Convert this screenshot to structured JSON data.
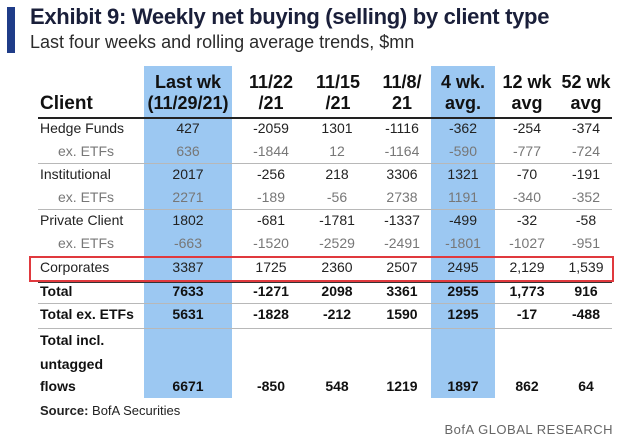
{
  "title": "Exhibit 9: Weekly net buying (selling) by client type",
  "subtitle": "Last four weeks and rolling average trends, $mn",
  "header": {
    "client": "Client",
    "columns": [
      {
        "line1": "Last wk",
        "line2": "(11/29/21)"
      },
      {
        "line1": "11/22",
        "line2": "/21"
      },
      {
        "line1": "11/15",
        "line2": "/21"
      },
      {
        "line1": "11/8/",
        "line2": "21"
      },
      {
        "line1": "4 wk.",
        "line2": "avg."
      },
      {
        "line1": "12 wk",
        "line2": "avg"
      },
      {
        "line1": "52 wk",
        "line2": "avg"
      }
    ]
  },
  "rows": [
    {
      "label": "Hedge Funds",
      "values": [
        "427",
        "-2059",
        "1301",
        "-1116",
        "-362",
        "-254",
        "-374"
      ]
    },
    {
      "label": "ex. ETFs",
      "values": [
        "636",
        "-1844",
        "12",
        "-1164",
        "-590",
        "-777",
        "-724"
      ]
    },
    {
      "label": "Institutional",
      "values": [
        "2017",
        "-256",
        "218",
        "3306",
        "1321",
        "-70",
        "-191"
      ]
    },
    {
      "label": "ex. ETFs",
      "values": [
        "2271",
        "-189",
        "-56",
        "2738",
        "1191",
        "-340",
        "-352"
      ]
    },
    {
      "label": "Private Client",
      "values": [
        "1802",
        "-681",
        "-1781",
        "-1337",
        "-499",
        "-32",
        "-58"
      ]
    },
    {
      "label": "ex. ETFs",
      "values": [
        "-663",
        "-1520",
        "-2529",
        "-2491",
        "-1801",
        "-1027",
        "-951"
      ]
    },
    {
      "label": "Corporates",
      "values": [
        "3387",
        "1725",
        "2360",
        "2507",
        "2495",
        "2,129",
        "1,539"
      ]
    },
    {
      "label": "Total",
      "values": [
        "7633",
        "-1271",
        "2098",
        "3361",
        "2955",
        "1,773",
        "916"
      ]
    },
    {
      "label": "Total ex. ETFs",
      "values": [
        "5631",
        "-1828",
        "-212",
        "1590",
        "1295",
        "-17",
        "-488"
      ]
    },
    {
      "label_lines": [
        "Total incl.",
        "untagged",
        "flows"
      ],
      "values": [
        "6671",
        "-850",
        "548",
        "1219",
        "1897",
        "862",
        "64"
      ]
    }
  ],
  "source": {
    "label": "Source:",
    "text": "BofA Securities"
  },
  "brand": "BofA GLOBAL RESEARCH",
  "colors": {
    "accent": "#1f3c88",
    "highlight": "#9cc8f2",
    "callout": "#e0393e"
  }
}
